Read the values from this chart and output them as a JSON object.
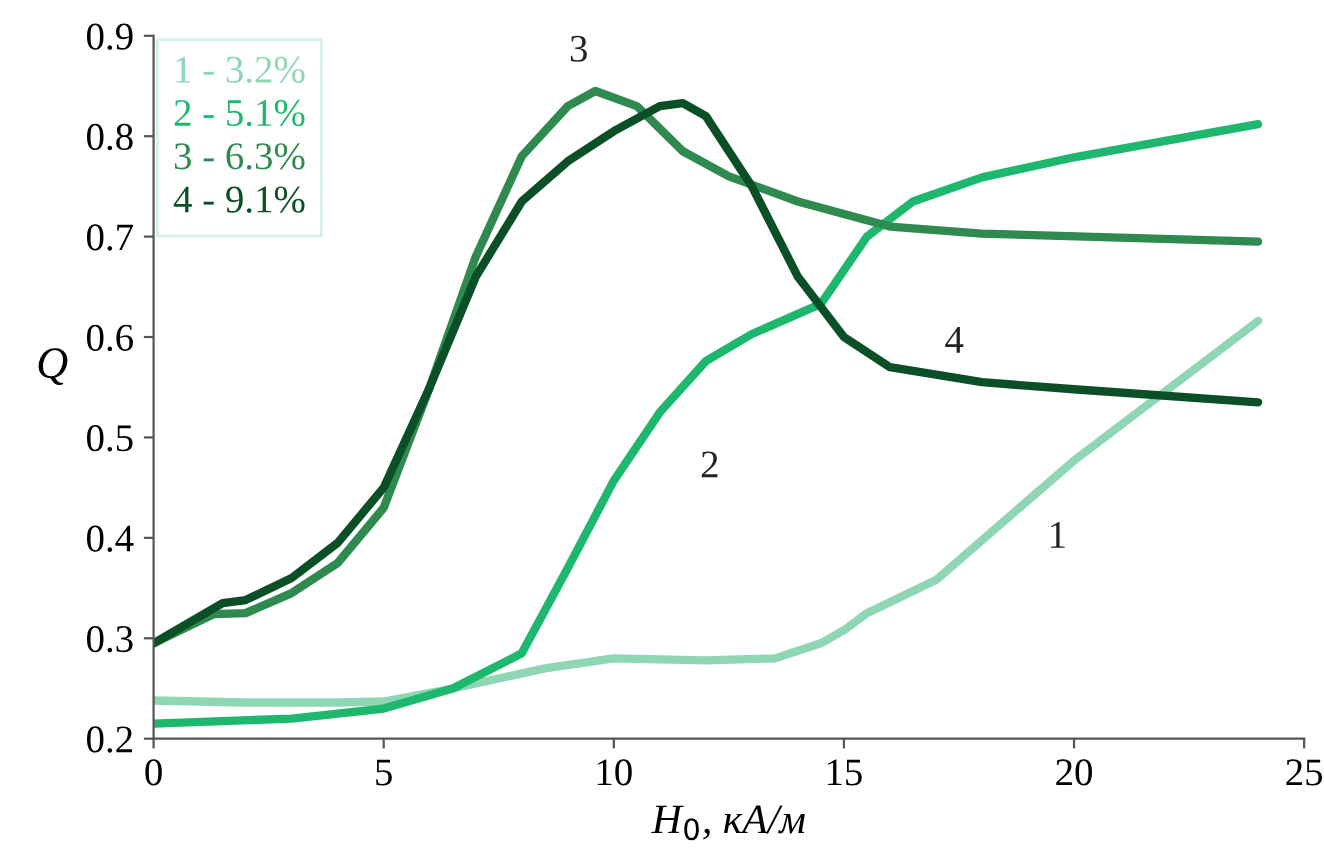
{
  "chart_data": {
    "type": "line",
    "xlabel": "H$_{0}$, кА/м",
    "ylabel": "Q",
    "xlim": [
      0,
      25
    ],
    "xticks": [
      0,
      5,
      10,
      15,
      20,
      25
    ],
    "ylim": [
      0.2,
      0.9
    ],
    "yticks": [
      0.2,
      0.3,
      0.4,
      0.5,
      0.6,
      0.7,
      0.8,
      0.9
    ],
    "grid": false,
    "legend": "top left",
    "marker": "none",
    "line_style": "solid",
    "series": [
      {
        "name": "1 - 3.2%",
        "color": "#8fd6b5",
        "x": [
          0,
          2,
          4,
          5,
          6.5,
          8.5,
          10,
          12,
          13.5,
          14.5,
          15,
          15.5,
          17,
          20,
          24
        ],
        "values": [
          0.238,
          0.236,
          0.236,
          0.237,
          0.25,
          0.27,
          0.28,
          0.278,
          0.28,
          0.295,
          0.308,
          0.325,
          0.358,
          0.477,
          0.616
        ]
      },
      {
        "name": "2 - 5.1%",
        "color": "#1db86e",
        "x": [
          0,
          3,
          5,
          6.5,
          8,
          9,
          10,
          11,
          12,
          13,
          14.5,
          15.5,
          16.5,
          18,
          20,
          24
        ],
        "values": [
          0.215,
          0.22,
          0.23,
          0.25,
          0.285,
          0.37,
          0.457,
          0.525,
          0.576,
          0.603,
          0.633,
          0.7,
          0.735,
          0.759,
          0.779,
          0.812
        ]
      },
      {
        "name": "3 - 6.3%",
        "color": "#2e8a4e",
        "x": [
          0,
          1.3,
          2,
          3,
          4,
          5,
          6,
          7,
          8,
          9,
          9.6,
          10.5,
          11.5,
          12.5,
          14,
          16,
          18,
          24
        ],
        "values": [
          0.295,
          0.324,
          0.325,
          0.345,
          0.375,
          0.43,
          0.55,
          0.68,
          0.78,
          0.83,
          0.845,
          0.83,
          0.785,
          0.76,
          0.735,
          0.71,
          0.703,
          0.695
        ]
      },
      {
        "name": "4 - 9.1%",
        "color": "#0b4f26",
        "x": [
          0,
          1.5,
          2,
          3,
          4,
          5,
          6,
          7,
          8,
          9,
          10,
          11,
          11.5,
          12,
          13,
          14,
          15,
          16,
          18,
          20,
          24
        ],
        "values": [
          0.295,
          0.335,
          0.338,
          0.36,
          0.395,
          0.45,
          0.55,
          0.66,
          0.735,
          0.775,
          0.805,
          0.83,
          0.833,
          0.82,
          0.75,
          0.66,
          0.6,
          0.57,
          0.555,
          0.548,
          0.535
        ]
      }
    ],
    "annotations": [
      {
        "text": "3",
        "x": 9.6,
        "y": 0.845
      },
      {
        "text": "2",
        "x": 11,
        "y": 0.525
      },
      {
        "text": "4",
        "x": 18,
        "y": 0.555
      },
      {
        "text": "1",
        "x": 20,
        "y": 0.477
      }
    ]
  }
}
